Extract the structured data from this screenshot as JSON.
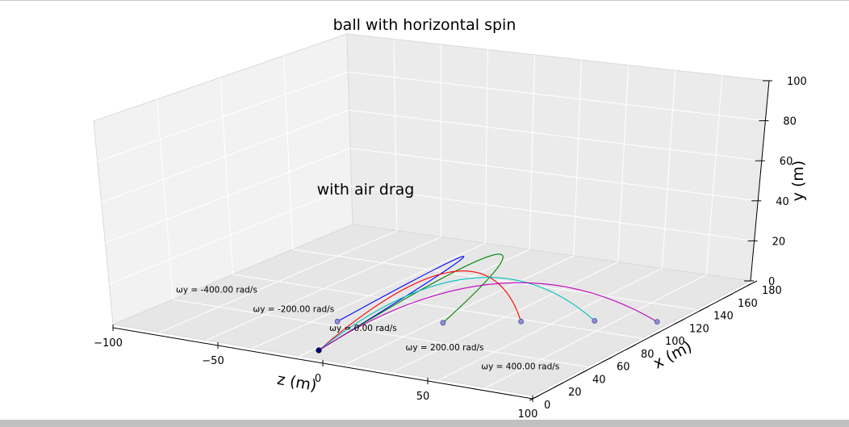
{
  "chart_data": {
    "type": "line",
    "title": "ball with horizontal spin",
    "annotation": "with air drag",
    "xlabel": "x (m)",
    "ylabel": "y (m)",
    "zlabel": "z (m)",
    "xlim": [
      0,
      180
    ],
    "ylim": [
      0,
      100
    ],
    "zlim": [
      -100,
      100
    ],
    "x_ticks": [
      "0",
      "20",
      "40",
      "60",
      "80",
      "100",
      "120",
      "140",
      "160",
      "180"
    ],
    "y_ticks": [
      "0",
      "20",
      "40",
      "60",
      "80",
      "100"
    ],
    "z_ticks": [
      "−100",
      "−50",
      "0",
      "50",
      "100"
    ],
    "grid": true,
    "launch_point": {
      "x": 0,
      "y": 0,
      "z": 0
    },
    "series": [
      {
        "label": "ωy = -400.00 rad/s",
        "color": "#0000ff",
        "landing": {
          "x": 38,
          "y": 0,
          "z": -40
        },
        "apex": {
          "x": 80,
          "y": 31,
          "z": -20
        }
      },
      {
        "label": "ωy = -200.00 rad/s",
        "color": "#008000",
        "landing": {
          "x": 67,
          "y": 0,
          "z": -15
        },
        "apex": {
          "x": 85,
          "y": 34,
          "z": -8
        }
      },
      {
        "label": "ωy = 0.00 rad/s",
        "color": "#ff0000",
        "landing": {
          "x": 91,
          "y": 0,
          "z": 0
        },
        "apex": {
          "x": 60,
          "y": 31,
          "z": 0
        }
      },
      {
        "label": "ωy = 200.00 rad/s",
        "color": "#00bfbf",
        "landing": {
          "x": 113,
          "y": 0,
          "z": 15
        },
        "apex": {
          "x": 62,
          "y": 29,
          "z": 8
        }
      },
      {
        "label": "ωy = 400.00 rad/s",
        "color": "#bf00bf",
        "landing": {
          "x": 130,
          "y": 0,
          "z": 30
        },
        "apex": {
          "x": 68,
          "y": 27,
          "z": 16
        }
      }
    ]
  }
}
